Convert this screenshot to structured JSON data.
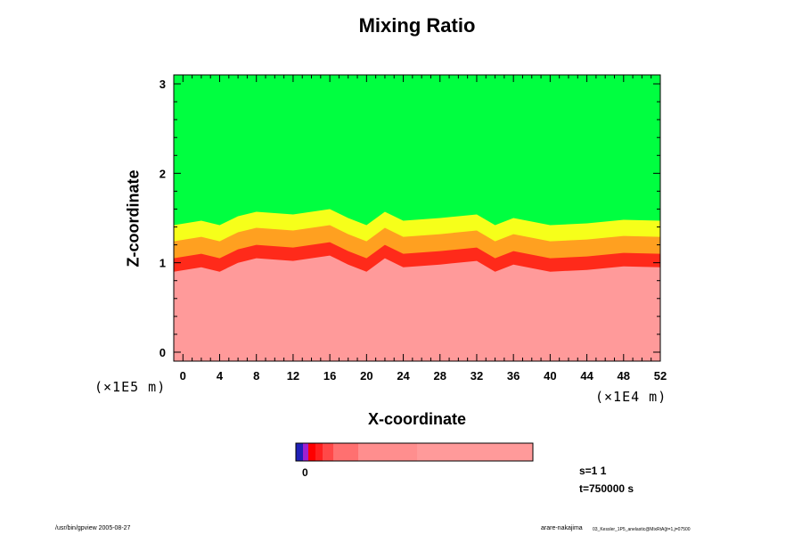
{
  "chart_data": {
    "type": "heatmap",
    "title": "Mixing Ratio",
    "xlabel": "X-coordinate",
    "ylabel": "Z-coordinate",
    "x_unit": "(×1E4 m)",
    "y_unit": "(×1E5 m)",
    "xlim": [
      -1,
      52
    ],
    "ylim": [
      -0.1,
      3.1
    ],
    "x_ticks": [
      "0",
      "4",
      "8",
      "12",
      "16",
      "20",
      "24",
      "28",
      "32",
      "36",
      "40",
      "44",
      "48",
      "52"
    ],
    "y_ticks": [
      "0",
      "1",
      "2",
      "3"
    ],
    "levels": {
      "colors": [
        "#2020b8",
        "#a020d0",
        "#ff0000",
        "#ff2020",
        "#ff4848",
        "#ff7070",
        "#ff8e8e",
        "#ff9a9a"
      ],
      "upper_color": "#00ff40",
      "zero_label": "0"
    },
    "bands": [
      {
        "name": "upper",
        "color": "#00ff40"
      },
      {
        "name": "transition-yellow",
        "color": "#f6ff1a"
      },
      {
        "name": "transition-orange",
        "color": "#ffa020"
      },
      {
        "name": "interface",
        "color": "#ff2a1a"
      },
      {
        "name": "lower",
        "color": "#ff9a9a"
      }
    ],
    "interface_height_profile": {
      "x": [
        -1,
        2,
        4,
        6,
        8,
        12,
        16,
        18,
        20,
        22,
        24,
        28,
        32,
        34,
        36,
        40,
        44,
        48,
        52
      ],
      "z": [
        1.0,
        1.05,
        1.0,
        1.1,
        1.15,
        1.12,
        1.18,
        1.08,
        1.0,
        1.15,
        1.05,
        1.08,
        1.12,
        1.0,
        1.08,
        1.0,
        1.02,
        1.06,
        1.05
      ]
    },
    "grid": false
  },
  "info": {
    "s": "s=1 1",
    "t": "t=750000 s"
  },
  "footer": {
    "left": "/usr/bin/gpview 2005-08-27",
    "right_user": "arare-nakajima",
    "right_file": "03_Kessler_1P5_anelastic@MixRtA(jt=1,j=07500"
  }
}
